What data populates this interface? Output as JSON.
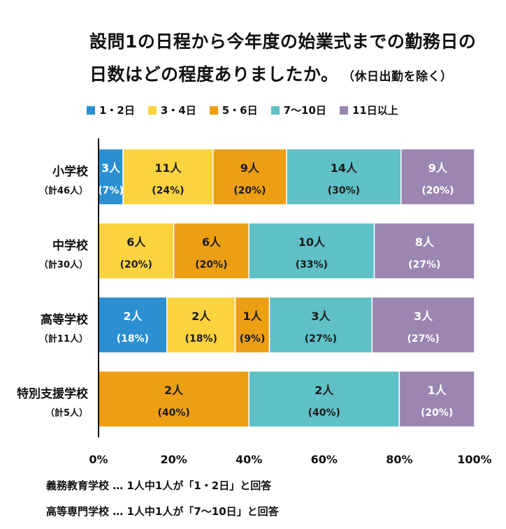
{
  "title": {
    "line1": "設問1の日程から今年度の始業式までの勤務日の",
    "line2": "日数はどの程度ありましたか。",
    "note": "（休日出勤を除く）"
  },
  "chart_data": {
    "type": "bar",
    "orientation": "horizontal",
    "stacked": true,
    "normalized_percent": true,
    "categories": [
      {
        "name": "小学校",
        "sub": "（計46人）"
      },
      {
        "name": "中学校",
        "sub": "（計30人）"
      },
      {
        "name": "高等学校",
        "sub": "（計11人）"
      },
      {
        "name": "特別支援学校",
        "sub": "（計5人）"
      }
    ],
    "series": [
      {
        "name": "1・2日",
        "color": "#2b8fd1",
        "counts": [
          3,
          0,
          2,
          0
        ],
        "percents": [
          7,
          0,
          18,
          0
        ]
      },
      {
        "name": "3・4日",
        "color": "#fbd33f",
        "counts": [
          11,
          6,
          2,
          0
        ],
        "percents": [
          24,
          20,
          18,
          0
        ]
      },
      {
        "name": "5・6日",
        "color": "#ec9f12",
        "counts": [
          9,
          6,
          1,
          2
        ],
        "percents": [
          20,
          20,
          9,
          40
        ]
      },
      {
        "name": "7〜10日",
        "color": "#5fc0c6",
        "counts": [
          14,
          10,
          3,
          2
        ],
        "percents": [
          30,
          33,
          27,
          40
        ]
      },
      {
        "name": "11日以上",
        "color": "#9a86b1",
        "counts": [
          9,
          8,
          3,
          1
        ],
        "percents": [
          20,
          27,
          27,
          20
        ]
      }
    ],
    "count_suffix": "人",
    "xticks": [
      "0%",
      "20%",
      "40%",
      "60%",
      "80%",
      "100%"
    ],
    "xlim": [
      0,
      100
    ],
    "grid": false,
    "legend_position": "top"
  },
  "footnotes": [
    "義務教育学校 … 1人中1人が「1・2日」と回答",
    "高等専門学校 … 1人中1人が「7〜10日」と回答"
  ]
}
